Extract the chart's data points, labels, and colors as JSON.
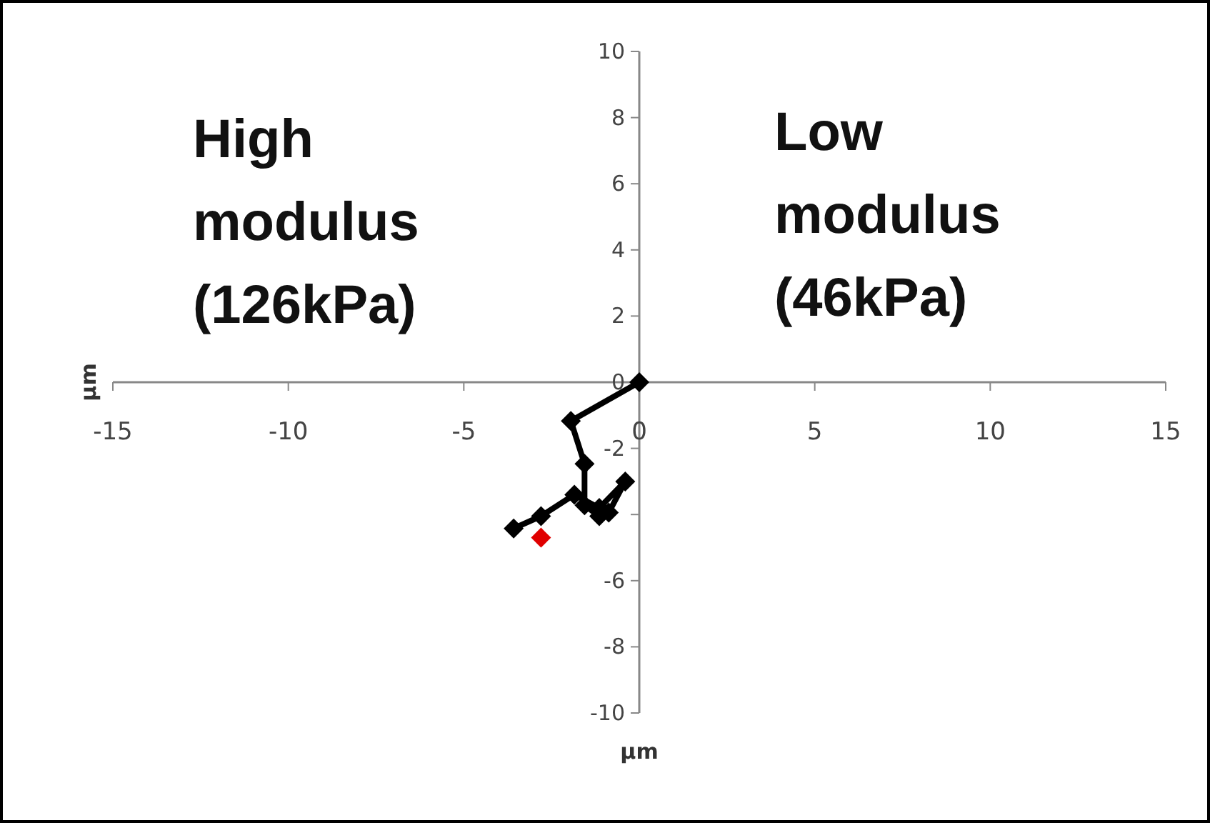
{
  "chart_data": {
    "type": "line",
    "xlabel": "µm",
    "ylabel": "µm",
    "xlim": [
      -15,
      15
    ],
    "ylim": [
      -10,
      10
    ],
    "xticks": [
      -15,
      -10,
      -5,
      0,
      5,
      10,
      15
    ],
    "yticks": [
      -10,
      -8,
      -6,
      {
        "value": -4,
        "label": null
      },
      -2,
      0,
      2,
      4,
      6,
      8,
      10
    ],
    "marker": "diamond",
    "grid": false,
    "annotations": [
      "High modulus (126kPa)",
      "Low modulus (46kPa)"
    ],
    "series": [
      {
        "color": "#000000",
        "x": [
          0,
          -1.95,
          -1.56,
          -1.56,
          -1.14,
          -0.87,
          -0.4,
          -1.14,
          -1.85,
          -2.8,
          -3.58
        ],
        "values": [
          0,
          -1.17,
          -2.47,
          -3.72,
          -4.05,
          -3.94,
          -3.0,
          -3.8,
          -3.4,
          -4.05,
          -4.42
        ]
      },
      {
        "type": "scatter",
        "color": "#e00000",
        "x": [
          -2.8
        ],
        "values": [
          -4.7
        ]
      }
    ]
  }
}
